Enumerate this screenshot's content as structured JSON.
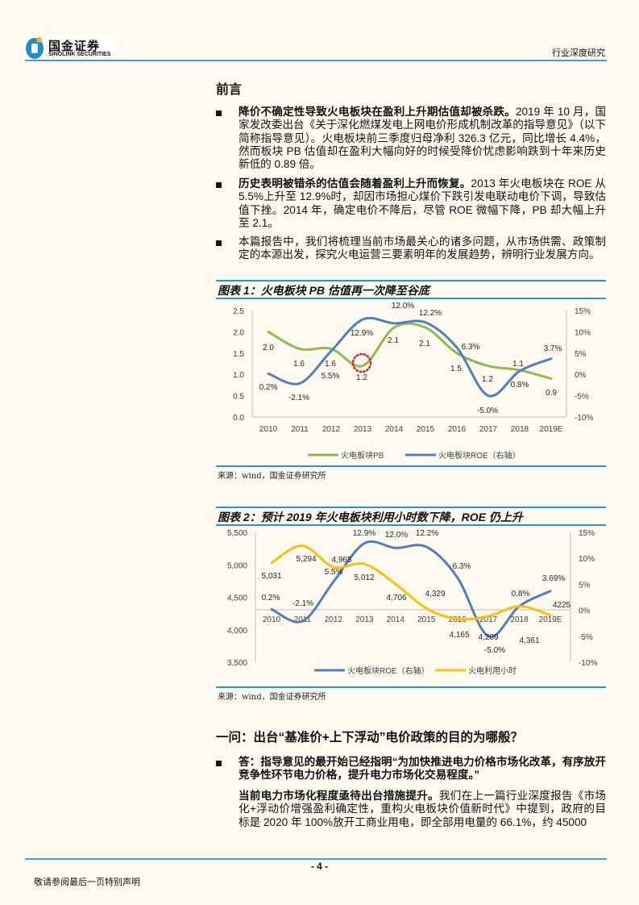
{
  "header": {
    "logo_cn": "国金证券",
    "logo_en": "SINOLINK SECURITIES",
    "category": "行业深度研究"
  },
  "intro": {
    "title": "前言",
    "bullets": [
      {
        "bold": "降价不确定性导致火电板块在盈利上升期估值却被杀跌。",
        "text": "2019 年 10 月，国家发改委出台《关于深化燃煤发电上网电价形成机制改革的指导意见》（以下简称指导意见）。火电板块前三季度归母净利 326.3 亿元，同比增长 4.4%，然而板块 PB 估值却在盈利大幅向好的时候受降价忧虑影响跌到十年来历史新低的 0.89 倍。"
      },
      {
        "bold": "历史表明被错杀的估值会随着盈利上升而恢复。",
        "text": "2013 年火电板块在 ROE 从 5.5%上升至 12.9%时，却因市场担心煤价下跌引发电联动电价下调，导致估值下挫。2014 年，确定电价不降后，尽管 ROE 微幅下降，PB 却大幅上升至 2.1。"
      },
      {
        "bold": "",
        "text": "本篇报告中，我们将梳理当前市场最关心的诸多问题，从市场供需、政策制定的本源出发，探究火电运营三要素明年的发展趋势，辨明行业发展方向。"
      }
    ]
  },
  "figure1": {
    "title": "图表 1：火电板块 PB 估值再一次降至谷底",
    "source": "来源：wind，国金证券研究所"
  },
  "figure2": {
    "title": "图表 2：预计 2019 年火电板块利用小时数下降，ROE 仍上升",
    "source": "来源：wind，国金证券研究所"
  },
  "chart_data": [
    {
      "type": "line",
      "categories": [
        "2010",
        "2011",
        "2012",
        "2013",
        "2014",
        "2015",
        "2016",
        "2017",
        "2018",
        "2019E"
      ],
      "left_axis": {
        "ylim": [
          0.0,
          2.5
        ],
        "ticks": [
          "0.0",
          "0.5",
          "1.0",
          "1.5",
          "2.0",
          "2.5"
        ]
      },
      "right_axis": {
        "ylim": [
          -10,
          15
        ],
        "ticks": [
          "-10%",
          "-5%",
          "0%",
          "5%",
          "10%",
          "15%"
        ]
      },
      "series": [
        {
          "name": "火电板块PB",
          "axis": "left",
          "color": "#8fbc4f",
          "values": [
            2.0,
            1.6,
            1.6,
            1.2,
            2.1,
            2.1,
            1.5,
            1.2,
            1.1,
            0.9
          ],
          "labels": [
            "2.0",
            "1.6",
            "1.6",
            "1.2",
            "2.1",
            "2.1",
            "1.5",
            "1.2",
            "1.1",
            "0.9"
          ]
        },
        {
          "name": "火电板块ROE（右轴）",
          "axis": "right",
          "color": "#4f7fc0",
          "values": [
            0.2,
            -2.1,
            5.5,
            12.9,
            12.0,
            12.2,
            6.3,
            -5.0,
            0.8,
            3.7
          ],
          "labels": [
            "0.2%",
            "-2.1%",
            "5.5%",
            "12.9%",
            "12.0%",
            "12.2%",
            "6.3%",
            "-5.0%",
            "0.8%",
            "3.7%"
          ]
        }
      ],
      "annotation": {
        "type": "dotted-circle",
        "color": "#e02020",
        "category": "2013"
      },
      "grid": false,
      "legend": "bottom"
    },
    {
      "type": "line",
      "categories": [
        "2010",
        "2011",
        "2012",
        "2013",
        "2014",
        "2015",
        "2016",
        "2017",
        "2018",
        "2019E"
      ],
      "left_axis": {
        "ylim": [
          3500,
          5500
        ],
        "ticks": [
          "3,500",
          "4,000",
          "4,500",
          "5,000",
          "5,500"
        ]
      },
      "right_axis": {
        "ylim": [
          -10,
          15
        ],
        "ticks": [
          "-10%",
          "-5%",
          "0%",
          "5%",
          "10%",
          "15%"
        ]
      },
      "series": [
        {
          "name": "火电板块ROE（右轴）",
          "axis": "right",
          "color": "#4f7fc0",
          "values": [
            0.2,
            -2.1,
            5.5,
            12.9,
            12.0,
            12.2,
            6.3,
            -5.0,
            0.8,
            3.69
          ],
          "labels": [
            "0.2%",
            "-2.1%",
            "5.5%",
            "12.9%",
            "12.0%",
            "12.2%",
            "6.3%",
            "-5.0%",
            "0.8%",
            "3.69%"
          ]
        },
        {
          "name": "火电利用小时",
          "axis": "left",
          "color": "#ffc000",
          "values": [
            5031,
            5294,
            4965,
            5012,
            4706,
            4329,
            4165,
            4209,
            4361,
            4225
          ],
          "labels": [
            "5,031",
            "5,294",
            "4,965",
            "5,012",
            "4,706",
            "4,329",
            "4,165",
            "4,209",
            "4,361",
            "4225"
          ]
        }
      ],
      "grid": false,
      "legend": "bottom"
    }
  ],
  "question1": {
    "title": "一问：出台“基准价+上下浮动”电价政策的目的为哪般？",
    "answer_bold": "答：指导意见的最开始已经指明“为加快推进电力价格市场化改革，有序放开竞争性环节电力价格，提升电力市场化交易程度。”",
    "followup_bold": "当前电力市场化程度亟待出台措施提升。",
    "followup_text": "我们在上一篇行业深度报告《市场化+浮动价增强盈利确定性，重构火电板块价值新时代》中提到，政府的目标是 2020 年 100%放开工商业用电，即全部用电量的 66.1%，约 45000"
  },
  "footer": {
    "page": "- 4 -",
    "disclaimer": "敬请参阅最后一页特别声明"
  }
}
